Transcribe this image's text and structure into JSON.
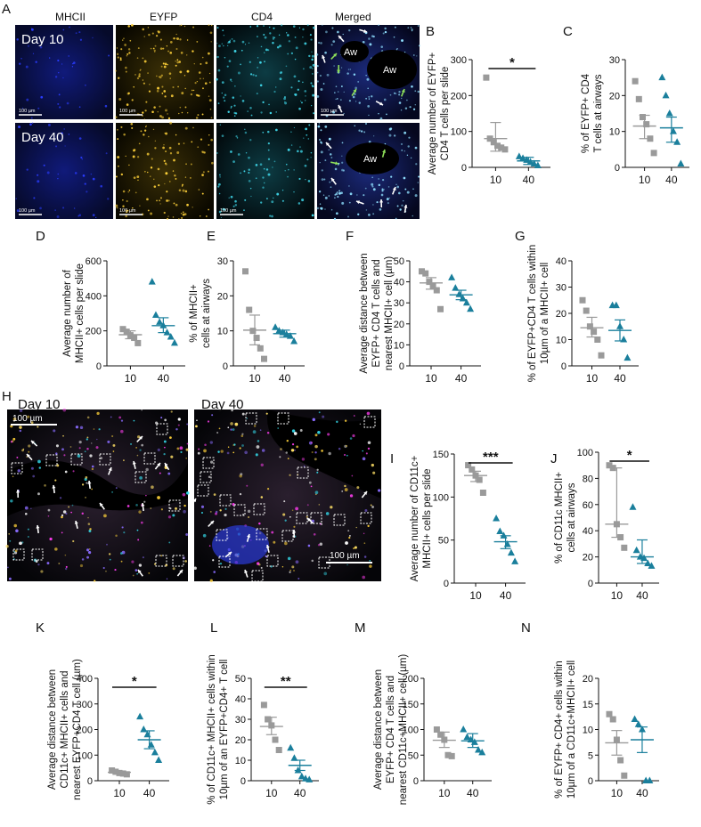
{
  "figure": {
    "channels": [
      "MHCII",
      "EYFP",
      "CD4",
      "Merged"
    ],
    "row_a": [
      {
        "label": "Day 10",
        "scale_bar": "100 µm",
        "aw_labels": [
          "Aw",
          "Aw"
        ]
      },
      {
        "label": "Day 40",
        "scale_bar": "100 µm",
        "aw_labels": [
          "Aw"
        ]
      }
    ],
    "panel_h": [
      {
        "label": "Day 10",
        "scale_bar": "100 µm"
      },
      {
        "label": "Day 40",
        "scale_bar": "100 µm"
      }
    ],
    "panel_letters": [
      "A",
      "B",
      "C",
      "D",
      "E",
      "F",
      "G",
      "H",
      "I",
      "J",
      "K",
      "L",
      "M",
      "N"
    ],
    "colors": {
      "grey": "#9a9a9a",
      "teal": "#1a7f9c",
      "mean_grey": "#9a9a9a",
      "mean_teal": "#1a7f9c"
    }
  },
  "chart_data": [
    {
      "panel": "B",
      "type": "scatter",
      "categories": [
        "10",
        "40"
      ],
      "ylabel": "Average number of EYFP+\nCD4 T cells per slide",
      "ylim": [
        0,
        300
      ],
      "yticks": [
        0,
        100,
        200,
        300
      ],
      "significance": "*",
      "series": [
        {
          "values": [
            [
              250,
              80,
              70,
              60,
              55,
              50
            ],
            [
              30,
              25,
              20,
              15,
              10,
              5
            ]
          ]
        }
      ],
      "means": [
        80,
        18
      ],
      "sem": [
        [
          45,
          125
        ],
        [
          8,
          28
        ]
      ]
    },
    {
      "panel": "C",
      "type": "scatter",
      "categories": [
        "10",
        "40"
      ],
      "ylabel": "% of EYFP+ CD4\nT cells at airways",
      "ylim": [
        0,
        30
      ],
      "yticks": [
        0,
        10,
        20,
        30
      ],
      "significance": "",
      "series": [
        {
          "values": [
            [
              24,
              19,
              14,
              12,
              8,
              4
            ],
            [
              25,
              20,
              15,
              10,
              7,
              1
            ]
          ]
        }
      ],
      "means": [
        11.5,
        11
      ],
      "sem": [
        [
          8,
          14.5
        ],
        [
          7,
          14
        ]
      ]
    },
    {
      "panel": "D",
      "type": "scatter",
      "categories": [
        "10",
        "40"
      ],
      "ylabel": "Average number of\nMHCII+ cells per slide",
      "ylim": [
        0,
        600
      ],
      "yticks": [
        0,
        200,
        400,
        600
      ],
      "significance": "",
      "series": [
        {
          "values": [
            [
              210,
              195,
              175,
              160,
              130
            ],
            [
              480,
              290,
              250,
              230,
              190,
              165,
              130
            ]
          ]
        }
      ],
      "means": [
        178,
        230
      ],
      "sem": [
        [
          155,
          200
        ],
        [
          190,
          275
        ]
      ]
    },
    {
      "panel": "E",
      "type": "scatter",
      "categories": [
        "10",
        "40"
      ],
      "ylabel": "% of MHCII+\ncells at airways",
      "ylim": [
        0,
        30
      ],
      "yticks": [
        0,
        10,
        20,
        30
      ],
      "significance": "",
      "series": [
        {
          "values": [
            [
              27,
              16,
              10,
              8,
              5,
              2
            ],
            [
              11,
              10,
              9.5,
              9,
              8.5,
              7
            ]
          ]
        }
      ],
      "means": [
        10.2,
        9.2
      ],
      "sem": [
        [
          6,
          14.5
        ],
        [
          8.2,
          10.2
        ]
      ]
    },
    {
      "panel": "F",
      "type": "scatter",
      "categories": [
        "10",
        "40"
      ],
      "ylabel": "Average distance between\nEYFP+ CD4 T cells and\nnearest MHCII+ cell (µm)",
      "ylim": [
        0,
        50
      ],
      "yticks": [
        0,
        10,
        20,
        30,
        40,
        50
      ],
      "significance": "",
      "series": [
        {
          "values": [
            [
              45,
              44,
              40,
              38,
              36,
              27
            ],
            [
              42,
              37,
              34,
              32,
              30,
              27
            ]
          ]
        }
      ],
      "means": [
        39.5,
        33.8
      ],
      "sem": [
        [
          36.5,
          42
        ],
        [
          31.5,
          36
        ]
      ]
    },
    {
      "panel": "G",
      "type": "scatter",
      "categories": [
        "10",
        "40"
      ],
      "ylabel": "% of EYFP+CD4 T cells within\n10µm of a MHCII+ cell",
      "ylim": [
        0,
        40
      ],
      "yticks": [
        0,
        10,
        20,
        30,
        40
      ],
      "significance": "",
      "series": [
        {
          "values": [
            [
              25,
              21,
              15,
              13,
              10,
              4
            ],
            [
              23,
              23,
              15,
              10,
              3
            ]
          ]
        }
      ],
      "means": [
        14.5,
        13.5
      ],
      "sem": [
        [
          11,
          18.5
        ],
        [
          9.5,
          17.5
        ]
      ]
    },
    {
      "panel": "I",
      "type": "scatter",
      "categories": [
        "10",
        "40"
      ],
      "ylabel": "Average number of CD11c+\nMHCII+ cells per slide",
      "ylim": [
        0,
        150
      ],
      "yticks": [
        0,
        50,
        100,
        150
      ],
      "significance": "***",
      "series": [
        {
          "values": [
            [
              137,
              132,
              125,
              120,
              105
            ],
            [
              75,
              60,
              55,
              45,
              35,
              25
            ]
          ]
        }
      ],
      "means": [
        125,
        48
      ],
      "sem": [
        [
          118,
          130
        ],
        [
          40,
          55
        ]
      ]
    },
    {
      "panel": "J",
      "type": "scatter",
      "categories": [
        "10",
        "40"
      ],
      "ylabel": "% of CD11c MHCII+\ncells at airways",
      "ylim": [
        0,
        100
      ],
      "yticks": [
        0,
        20,
        40,
        60,
        80,
        100
      ],
      "significance": "*",
      "series": [
        {
          "values": [
            [
              90,
              88,
              45,
              35,
              27
            ],
            [
              58,
              25,
              20,
              19,
              15,
              13
            ]
          ]
        }
      ],
      "means": [
        45,
        20
      ],
      "sem": [
        [
          35,
          88
        ],
        [
          15,
          33
        ]
      ]
    },
    {
      "panel": "K",
      "type": "scatter",
      "categories": [
        "10",
        "40"
      ],
      "ylabel": "Average distance between\nCD11c+ MHCII+ cells and\nnearest EYFP+CD4 T cell (µm)",
      "ylim": [
        0,
        400
      ],
      "yticks": [
        0,
        100,
        200,
        300,
        400
      ],
      "significance": "*",
      "series": [
        {
          "values": [
            [
              40,
              35,
              30,
              28,
              25
            ],
            [
              250,
              200,
              180,
              140,
              110,
              80
            ]
          ]
        }
      ],
      "means": [
        33,
        160
      ],
      "sem": [
        [
          28,
          38
        ],
        [
          125,
          195
        ]
      ]
    },
    {
      "panel": "L",
      "type": "scatter",
      "categories": [
        "10",
        "40"
      ],
      "ylabel": "% of CD11c+ MHCII+ cells within\n10µm of an EYFP+CD4+ T cell",
      "ylim": [
        0,
        50
      ],
      "yticks": [
        0,
        10,
        20,
        30,
        40,
        50
      ],
      "significance": "**",
      "series": [
        {
          "values": [
            [
              37,
              30,
              27,
              20,
              15
            ],
            [
              16,
              11,
              5,
              2,
              1,
              0.5
            ]
          ]
        }
      ],
      "means": [
        26.5,
        7.5
      ],
      "sem": [
        [
          22.5,
          31
        ],
        [
          5,
          10
        ]
      ]
    },
    {
      "panel": "M",
      "type": "scatter",
      "categories": [
        "10",
        "40"
      ],
      "ylabel": "Average distance between\nEYFP+ CD4 T cells and\nnearest CD11c+MHCII+ cell (µm)",
      "ylim": [
        0,
        200
      ],
      "yticks": [
        0,
        50,
        100,
        150,
        200
      ],
      "significance": "",
      "series": [
        {
          "values": [
            [
              100,
              90,
              80,
              50,
              48
            ],
            [
              100,
              85,
              80,
              75,
              60,
              55
            ]
          ]
        }
      ],
      "means": [
        79,
        78
      ],
      "sem": [
        [
          65,
          95
        ],
        [
          65,
          92
        ]
      ]
    },
    {
      "panel": "N",
      "type": "scatter",
      "categories": [
        "10",
        "40"
      ],
      "ylabel": "% of EYFP+ CD4+ cells within\n10µm of a CD11c+MHCII+ cell",
      "ylim": [
        0,
        20
      ],
      "yticks": [
        0,
        5,
        10,
        15,
        20
      ],
      "significance": "",
      "series": [
        {
          "values": [
            [
              13,
              12,
              8,
              4,
              1
            ],
            [
              12,
              11,
              10,
              0,
              0
            ]
          ]
        }
      ],
      "means": [
        7.4,
        8
      ],
      "sem": [
        [
          5,
          9.8
        ],
        [
          5.5,
          10.5
        ]
      ]
    }
  ]
}
